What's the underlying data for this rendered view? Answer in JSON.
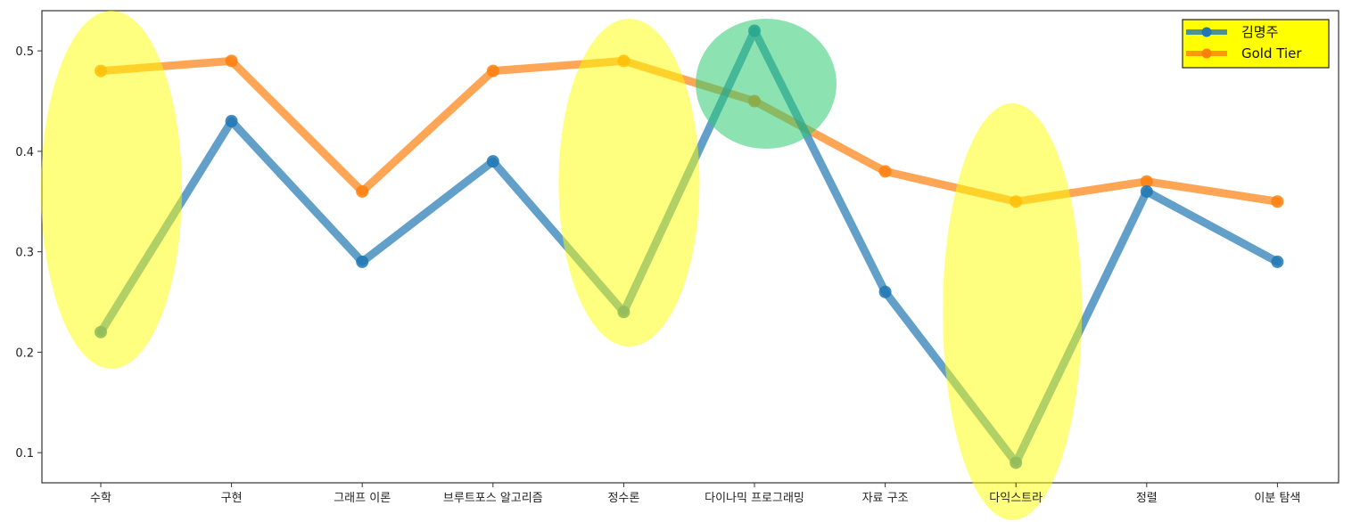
{
  "chart_data": {
    "type": "line",
    "categories": [
      "수학",
      "구현",
      "그래프 이론",
      "브루트포스 알고리즘",
      "정수론",
      "다이나믹 프로그래밍",
      "자료 구조",
      "다익스트라",
      "정렬",
      "이분 탐색"
    ],
    "series": [
      {
        "name": "김명주",
        "color": "#1f77b4",
        "values": [
          0.22,
          0.43,
          0.29,
          0.39,
          0.24,
          0.52,
          0.26,
          0.09,
          0.36,
          0.29
        ]
      },
      {
        "name": "Gold Tier",
        "color": "#ff7f0e",
        "values": [
          0.48,
          0.49,
          0.36,
          0.48,
          0.49,
          0.45,
          0.38,
          0.35,
          0.37,
          0.35
        ]
      }
    ],
    "yticks": [
      "0.1",
      "0.2",
      "0.3",
      "0.4",
      "0.5"
    ],
    "ylim": [
      0.07,
      0.54
    ],
    "grid": false,
    "legend_position": "top-right",
    "legend_background": "#ffff00",
    "highlights": [
      {
        "category": "수학",
        "color": "#ffff00",
        "shape": "ellipse"
      },
      {
        "category": "정수론",
        "color": "#ffff00",
        "shape": "ellipse"
      },
      {
        "category": "다이나믹 프로그래밍",
        "color": "#2ecc71",
        "shape": "circle"
      },
      {
        "category": "다익스트라",
        "color": "#ffff00",
        "shape": "ellipse"
      }
    ]
  }
}
